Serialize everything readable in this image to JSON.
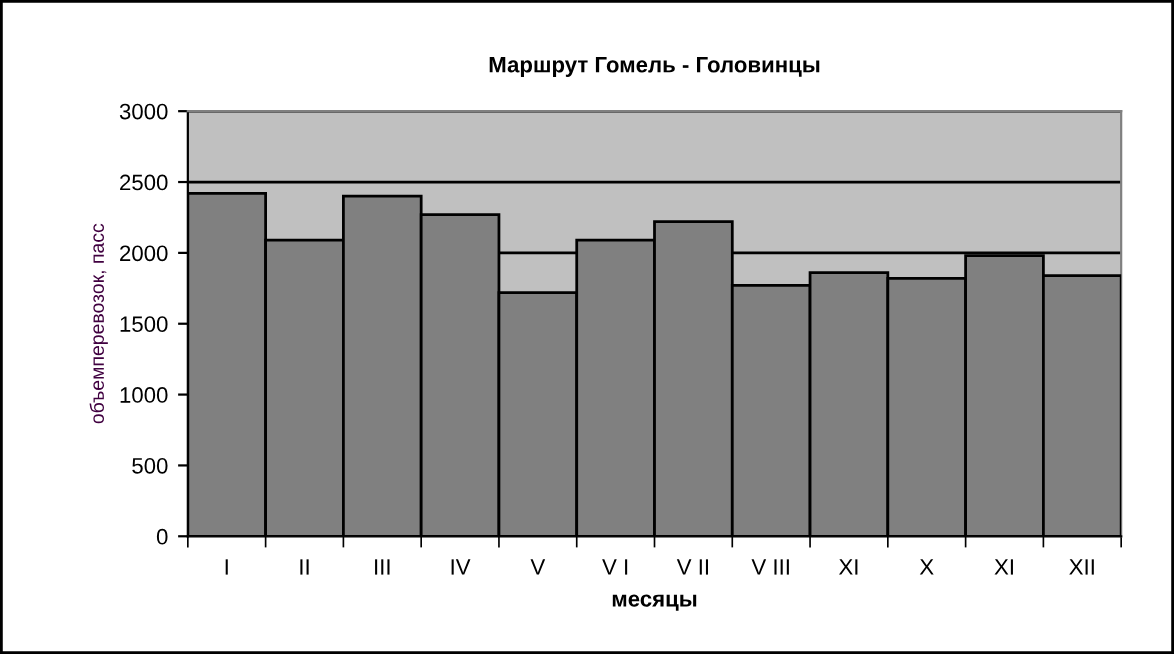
{
  "chart_data": {
    "type": "bar",
    "title": "Маршрут Гомель - Головинцы",
    "xlabel": "месяцы",
    "ylabel": "объемперевозок, пасс",
    "categories": [
      "I",
      "II",
      "III",
      "IV",
      "V",
      "V I",
      "V II",
      "V III",
      "XI",
      "X",
      "XI",
      "XII"
    ],
    "values": [
      2420,
      2090,
      2400,
      2270,
      1720,
      2090,
      2220,
      1770,
      1860,
      1820,
      1980,
      1840
    ],
    "color": "#808080",
    "ylim": [
      0,
      3000
    ],
    "yticks": [
      0,
      500,
      1000,
      1500,
      2000,
      2500,
      3000
    ],
    "grid": "y",
    "legend": false
  }
}
